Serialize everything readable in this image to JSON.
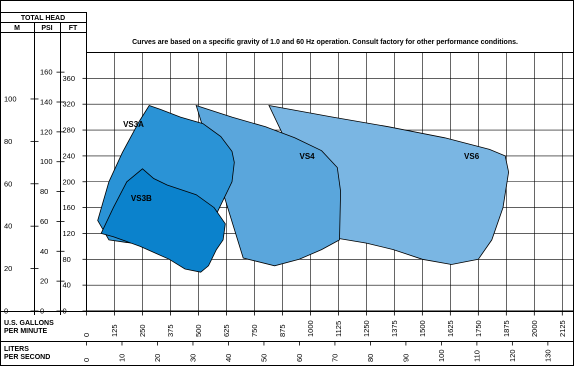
{
  "header": {
    "total_head": "TOTAL HEAD",
    "m": "M",
    "psi": "PSI",
    "ft": "FT"
  },
  "note": "Curves are based on a specific gravity of 1.0 and 60 Hz operation. Consult factory for other performance conditions.",
  "gpm_label_1": "U.S. GALLONS",
  "gpm_label_2": "PER MINUTE",
  "lps_label_1": "LITERS",
  "lps_label_2": "PER SECOND",
  "colors": {
    "border": "#000000",
    "grid": "#000000",
    "vs6": "#7ab6e3",
    "vs4": "#5aa6dc",
    "vs3a": "#2a93d6",
    "vs3b": "#0b82cc"
  },
  "chart_data": {
    "type": "area",
    "x_axis": {
      "unit": "gpm",
      "ticks": [
        "0",
        "125",
        "250",
        "375",
        "500",
        "625",
        "750",
        "875",
        "1000",
        "1125",
        "1250",
        "1375",
        "1500",
        "1625",
        "1750",
        "1875",
        "2000",
        "2125"
      ],
      "range": [
        0,
        2175
      ]
    },
    "x2_axis": {
      "unit": "lps",
      "ticks": [
        "0",
        "10",
        "20",
        "30",
        "40",
        "50",
        "60",
        "70",
        "80",
        "90",
        "100",
        "110",
        "120",
        "130"
      ]
    },
    "y_axis": {
      "unit": "ft",
      "ticks": [
        "0",
        "40",
        "80",
        "120",
        "160",
        "200",
        "240",
        "280",
        "320",
        "360"
      ],
      "range": [
        0,
        400
      ]
    },
    "y2_axis": {
      "unit": "psi",
      "ticks": [
        "0",
        "20",
        "40",
        "60",
        "80",
        "100",
        "120",
        "140",
        "160"
      ]
    },
    "y3_axis": {
      "unit": "m",
      "ticks": [
        "0",
        "20",
        "40",
        "60",
        "80",
        "100"
      ]
    },
    "regions": [
      {
        "name": "VS6",
        "label": "VS6",
        "points": [
          [
            815,
            318
          ],
          [
            1100,
            300
          ],
          [
            1350,
            285
          ],
          [
            1600,
            268
          ],
          [
            1800,
            250
          ],
          [
            1870,
            240
          ],
          [
            1885,
            215
          ],
          [
            1860,
            160
          ],
          [
            1810,
            110
          ],
          [
            1750,
            80
          ],
          [
            1630,
            72
          ],
          [
            1500,
            80
          ],
          [
            1370,
            95
          ],
          [
            1250,
            105
          ],
          [
            1130,
            112
          ],
          [
            1080,
            125
          ],
          [
            815,
            318
          ]
        ]
      },
      {
        "name": "VS4",
        "label": "VS4",
        "points": [
          [
            490,
            318
          ],
          [
            650,
            300
          ],
          [
            800,
            285
          ],
          [
            930,
            268
          ],
          [
            1050,
            248
          ],
          [
            1120,
            222
          ],
          [
            1135,
            185
          ],
          [
            1130,
            110
          ],
          [
            1050,
            95
          ],
          [
            950,
            80
          ],
          [
            840,
            70
          ],
          [
            700,
            82
          ],
          [
            490,
            318
          ]
        ]
      },
      {
        "name": "VS3A",
        "label": "VS3A",
        "points": [
          [
            50,
            140
          ],
          [
            100,
            200
          ],
          [
            160,
            245
          ],
          [
            235,
            293
          ],
          [
            280,
            318
          ],
          [
            330,
            312
          ],
          [
            420,
            300
          ],
          [
            520,
            290
          ],
          [
            600,
            270
          ],
          [
            650,
            247
          ],
          [
            660,
            230
          ],
          [
            650,
            200
          ],
          [
            580,
            150
          ],
          [
            470,
            120
          ],
          [
            300,
            100
          ],
          [
            100,
            110
          ],
          [
            50,
            140
          ]
        ]
      },
      {
        "name": "VS3B",
        "label": "VS3B",
        "points": [
          [
            65,
            120
          ],
          [
            120,
            160
          ],
          [
            180,
            200
          ],
          [
            250,
            220
          ],
          [
            300,
            205
          ],
          [
            360,
            195
          ],
          [
            490,
            180
          ],
          [
            570,
            160
          ],
          [
            620,
            135
          ],
          [
            610,
            110
          ],
          [
            580,
            95
          ],
          [
            545,
            70
          ],
          [
            510,
            60
          ],
          [
            440,
            65
          ],
          [
            370,
            80
          ],
          [
            240,
            100
          ],
          [
            120,
            115
          ],
          [
            65,
            120
          ]
        ]
      }
    ]
  }
}
